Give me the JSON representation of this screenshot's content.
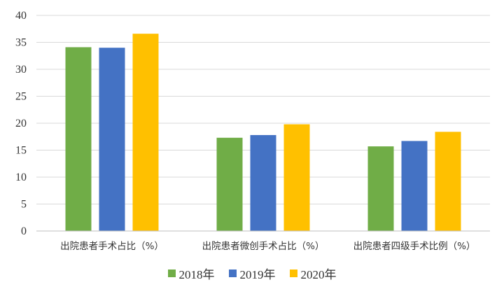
{
  "chart_data": {
    "type": "bar",
    "title": "",
    "xlabel": "",
    "ylabel": "",
    "ylim": [
      0,
      40
    ],
    "yticks": [
      0,
      5,
      10,
      15,
      20,
      25,
      30,
      35,
      40
    ],
    "grid": true,
    "legend_position": "bottom",
    "categories": [
      "出院患者手术占比（%）",
      "出院患者微创手术占比（%）",
      "出院患者四级手术比例（%）"
    ],
    "series": [
      {
        "name": "2018年",
        "color": "#70ad47",
        "values": [
          34.1,
          17.3,
          15.7
        ]
      },
      {
        "name": "2019年",
        "color": "#4472c4",
        "values": [
          34.0,
          17.8,
          16.7
        ]
      },
      {
        "name": "2020年",
        "color": "#ffc000",
        "values": [
          36.6,
          19.8,
          18.4
        ]
      }
    ]
  }
}
